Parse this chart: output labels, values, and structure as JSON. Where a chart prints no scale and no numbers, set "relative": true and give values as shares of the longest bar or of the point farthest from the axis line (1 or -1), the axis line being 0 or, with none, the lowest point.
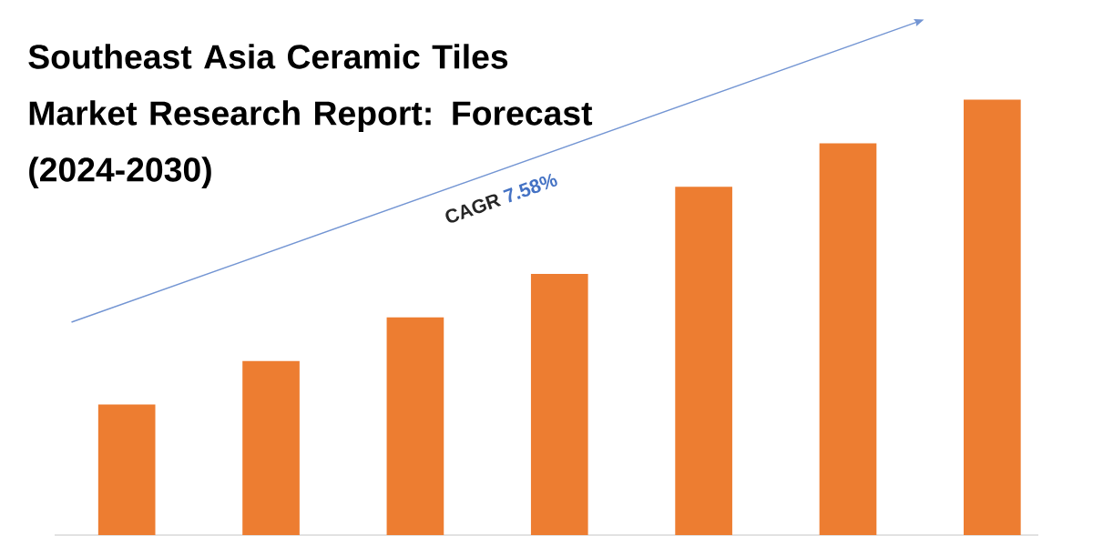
{
  "chart_data": {
    "type": "bar",
    "title": "Southeast Asia Ceramic Tiles Market Research Report: Forecast (2024-2030)",
    "categories": [
      null,
      null,
      null,
      null,
      null,
      null,
      null
    ],
    "values": [
      0.3,
      0.4,
      0.5,
      0.6,
      0.8,
      0.9,
      1.0
    ],
    "color": "#ed7d31",
    "relative": true,
    "annotations": [
      "CAGR",
      "7.58%"
    ]
  }
}
